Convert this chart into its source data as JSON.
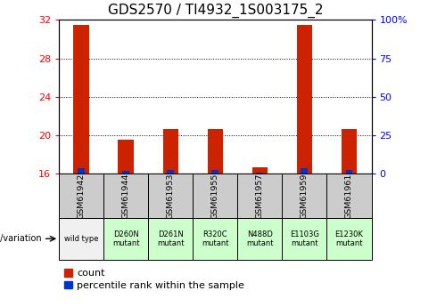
{
  "title": "GDS2570 / TI4932_1S003175_2",
  "samples": [
    "GSM61942",
    "GSM61944",
    "GSM61953",
    "GSM61955",
    "GSM61957",
    "GSM61959",
    "GSM61961"
  ],
  "genotypes": [
    "wild type",
    "D260N\nmutant",
    "D261N\nmutant",
    "R320C\nmutant",
    "N488D\nmutant",
    "E1103G\nmutant",
    "E1230K\nmutant"
  ],
  "count_values": [
    31.5,
    19.5,
    20.6,
    20.6,
    16.6,
    31.5,
    20.6
  ],
  "percentile_pct": [
    3.5,
    1.5,
    2.0,
    2.0,
    0.8,
    3.5,
    2.0
  ],
  "ylim_left": [
    16,
    32
  ],
  "ylim_right": [
    0,
    100
  ],
  "yticks_left": [
    16,
    20,
    24,
    28,
    32
  ],
  "yticks_right": [
    0,
    25,
    50,
    75,
    100
  ],
  "ytick_labels_right": [
    "0",
    "25",
    "50",
    "75",
    "100%"
  ],
  "bar_width": 0.35,
  "red_color": "#cc2200",
  "blue_color": "#0033cc",
  "sample_bg_color": "#cccccc",
  "genotype_bg_color": "#ccffcc",
  "wildtype_bg_color": "#f0f0f0",
  "title_fontsize": 11,
  "tick_fontsize": 8,
  "label_fontsize": 7,
  "legend_fontsize": 8
}
